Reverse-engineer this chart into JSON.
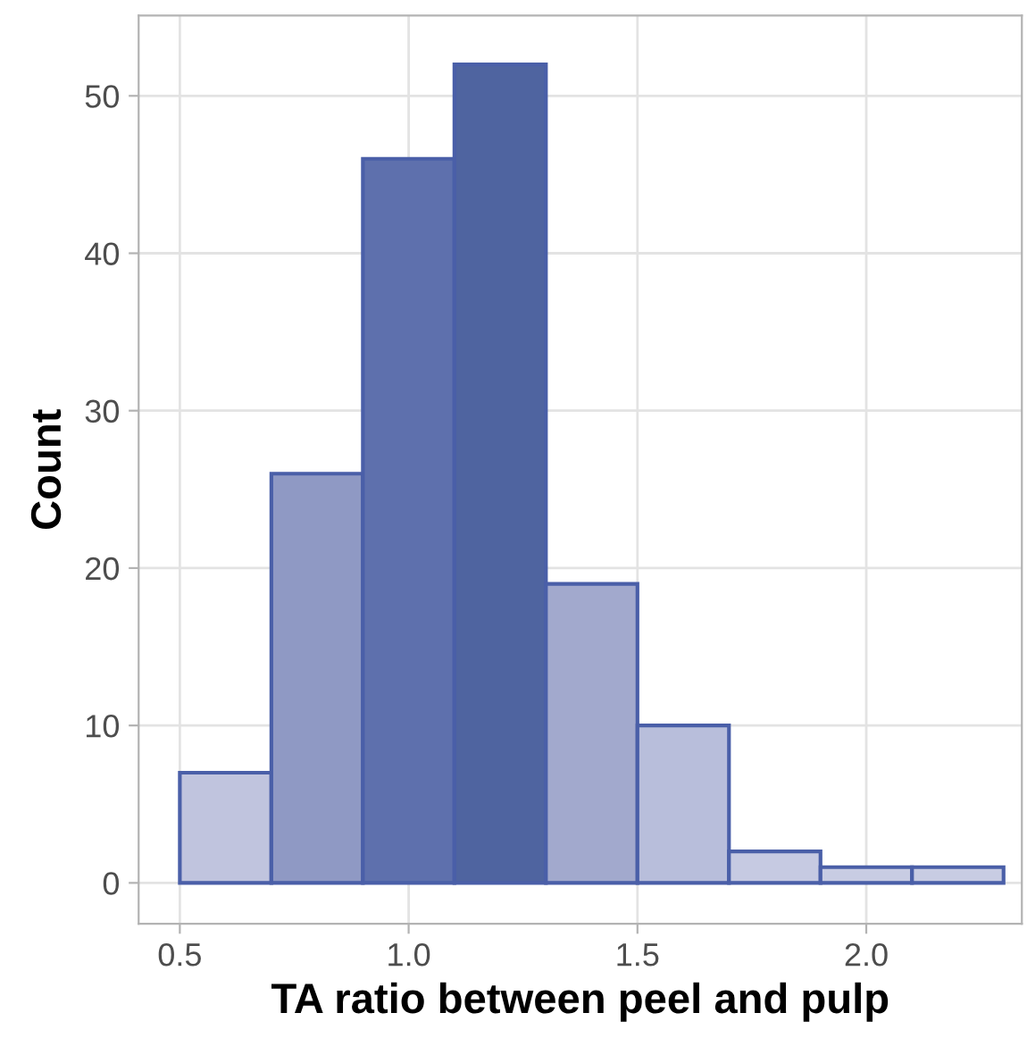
{
  "chart_data": {
    "type": "histogram",
    "xlabel": "TA ratio between peel and pulp",
    "ylabel": "Count",
    "bins": [
      0.5,
      0.7,
      0.9,
      1.1,
      1.3,
      1.5,
      1.7,
      1.9,
      2.1,
      2.3
    ],
    "values": [
      7,
      26,
      46,
      52,
      19,
      10,
      2,
      1,
      1
    ],
    "colors": [
      "#c0c4de",
      "#8f99c4",
      "#5e70ad",
      "#4f64a0",
      "#a2a9cd",
      "#b8bedb",
      "#c6cae2",
      "#c8cce3",
      "#c8cce3"
    ],
    "xlim": [
      0.41,
      2.34
    ],
    "ylim": [
      -2.6,
      55.1
    ],
    "xticks": [
      {
        "value": 0.5,
        "label": "0.5"
      },
      {
        "value": 1.0,
        "label": "1.0"
      },
      {
        "value": 1.5,
        "label": "1.5"
      },
      {
        "value": 2.0,
        "label": "2.0"
      }
    ],
    "yticks": [
      0,
      10,
      20,
      30,
      40,
      50
    ],
    "grid": true
  }
}
